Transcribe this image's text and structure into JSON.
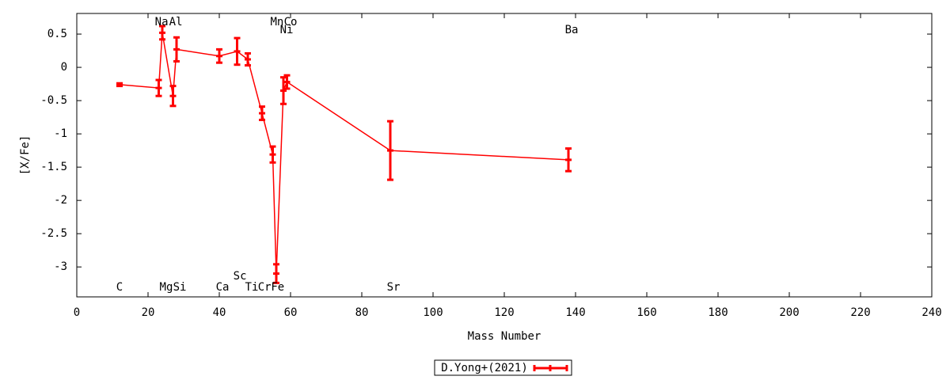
{
  "chart_data": {
    "type": "errorbar-line",
    "xlabel": "Mass Number",
    "ylabel": "[X/Fe]",
    "xlim": [
      0,
      240
    ],
    "xticks": [
      0,
      20,
      40,
      60,
      80,
      100,
      120,
      140,
      160,
      180,
      200,
      220,
      240
    ],
    "ylim": [
      -3.45,
      0.81
    ],
    "yticks": [
      -3,
      -2.5,
      -2,
      -1.5,
      -1,
      -0.5,
      0,
      0.5
    ],
    "x": [
      12,
      23,
      24,
      27,
      28,
      40,
      45,
      48,
      52,
      55,
      56,
      58,
      59,
      88,
      138
    ],
    "series": [
      {
        "name": "D.Yong+(2021)",
        "color": "#ff0000",
        "values": [
          -0.26,
          -0.31,
          0.52,
          -0.43,
          0.27,
          0.17,
          0.24,
          0.12,
          -0.69,
          -1.31,
          -3.1,
          -0.35,
          -0.22,
          -1.25,
          -1.39
        ],
        "errors": [
          0.02,
          0.12,
          0.1,
          0.15,
          0.18,
          0.1,
          0.2,
          0.09,
          0.1,
          0.12,
          0.14,
          0.2,
          0.1,
          0.44,
          0.17
        ]
      }
    ],
    "annotations": [
      {
        "text": "C",
        "x": 12,
        "y": -3.31
      },
      {
        "text": "Na",
        "x": 23.8,
        "y": 0.68
      },
      {
        "text": "Al",
        "x": 27.8,
        "y": 0.68
      },
      {
        "text": "Mg",
        "x": 25.1,
        "y": -3.31
      },
      {
        "text": "Si",
        "x": 28.9,
        "y": -3.31
      },
      {
        "text": "Ca",
        "x": 40.9,
        "y": -3.31
      },
      {
        "text": "Sc",
        "x": 45.8,
        "y": -3.14
      },
      {
        "text": "Ti",
        "x": 49.1,
        "y": -3.31
      },
      {
        "text": "Cr",
        "x": 52.7,
        "y": -3.31
      },
      {
        "text": "Fe",
        "x": 56.4,
        "y": -3.31
      },
      {
        "text": "Mn",
        "x": 56.2,
        "y": 0.68
      },
      {
        "text": "Co",
        "x": 60,
        "y": 0.68
      },
      {
        "text": "Ni",
        "x": 58.9,
        "y": 0.56
      },
      {
        "text": "Sr",
        "x": 88.9,
        "y": -3.31
      },
      {
        "text": "Ba",
        "x": 138.9,
        "y": 0.56
      }
    ]
  }
}
